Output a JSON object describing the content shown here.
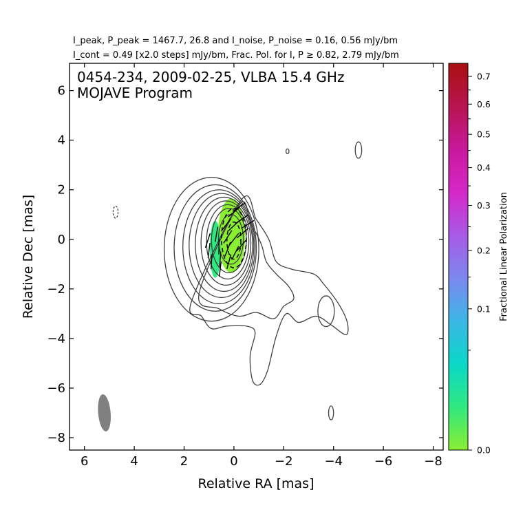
{
  "header": {
    "line1": "I_peak, P_peak = 1467.7, 26.8 and I_noise, P_noise = 0.16, 0.56 mJy/bm",
    "line2": "I_cont = 0.49 [x2.0 steps] mJy/bm, Frac. Pol. for I, P ≥ 0.82, 2.79 mJy/bm"
  },
  "chart_data": {
    "type": "contour",
    "title": "0454-234, 2009-02-25, VLBA 15.4 GHz",
    "subtitle": "MOJAVE Program",
    "xlabel": "Relative RA [mas]",
    "ylabel": "Relative Dec [mas]",
    "xlim": [
      6.6,
      -8.4
    ],
    "ylim": [
      -8.5,
      7.1
    ],
    "x_ticks": [
      6,
      4,
      2,
      0,
      -2,
      -4,
      -6,
      -8
    ],
    "y_ticks": [
      6,
      4,
      2,
      0,
      -2,
      -4,
      -6,
      -8
    ],
    "tick_labels_x": [
      "6",
      "4",
      "2",
      "0",
      "−2",
      "−4",
      "−6",
      "−8"
    ],
    "tick_labels_y": [
      "6",
      "4",
      "2",
      "0",
      "−2",
      "−4",
      "−6",
      "−8"
    ],
    "core_contours": [
      {
        "level": 1,
        "cx": 0.9,
        "cy": -0.4,
        "rx": 1.9,
        "ry": 2.9
      },
      {
        "level": 2,
        "cx": 0.75,
        "cy": -0.35,
        "rx": 1.65,
        "ry": 2.55
      },
      {
        "level": 3,
        "cx": 0.6,
        "cy": -0.3,
        "rx": 1.45,
        "ry": 2.3
      },
      {
        "level": 4,
        "cx": 0.5,
        "cy": -0.25,
        "rx": 1.3,
        "ry": 2.1
      },
      {
        "level": 5,
        "cx": 0.4,
        "cy": -0.2,
        "rx": 1.15,
        "ry": 1.9
      },
      {
        "level": 6,
        "cx": 0.32,
        "cy": -0.15,
        "rx": 1.0,
        "ry": 1.7
      },
      {
        "level": 7,
        "cx": 0.25,
        "cy": -0.1,
        "rx": 0.85,
        "ry": 1.5
      },
      {
        "level": 8,
        "cx": 0.2,
        "cy": -0.05,
        "rx": 0.7,
        "ry": 1.3
      },
      {
        "level": 9,
        "cx": 0.12,
        "cy": 0.0,
        "rx": 0.5,
        "ry": 1.0
      }
    ],
    "jet_outline": [
      [
        -0.3,
        1.6
      ],
      [
        -0.9,
        0.8
      ],
      [
        -1.4,
        0.0
      ],
      [
        -1.7,
        -0.9
      ],
      [
        -2.3,
        -1.2
      ],
      [
        -3.2,
        -1.4
      ],
      [
        -3.6,
        -1.8
      ],
      [
        -4.2,
        -2.6
      ],
      [
        -4.55,
        -3.35
      ],
      [
        -4.5,
        -3.85
      ],
      [
        -3.9,
        -3.45
      ],
      [
        -3.3,
        -3.1
      ],
      [
        -2.6,
        -3.35
      ],
      [
        -2.1,
        -3.0
      ],
      [
        -1.7,
        -3.9
      ],
      [
        -1.35,
        -5.3
      ],
      [
        -1.05,
        -5.85
      ],
      [
        -0.75,
        -5.7
      ],
      [
        -0.65,
        -4.7
      ],
      [
        -0.85,
        -3.75
      ],
      [
        -0.5,
        -3.5
      ],
      [
        0.3,
        -3.5
      ],
      [
        0.9,
        -3.6
      ],
      [
        1.3,
        -3.1
      ],
      [
        1.7,
        -2.5
      ]
    ],
    "second_contour": [
      [
        -0.2,
        1.4
      ],
      [
        -0.7,
        0.6
      ],
      [
        -1.1,
        -0.2
      ],
      [
        -1.3,
        -0.9
      ],
      [
        -1.7,
        -1.4
      ],
      [
        -2.2,
        -1.9
      ],
      [
        -2.4,
        -2.4
      ],
      [
        -2.0,
        -2.7
      ],
      [
        -1.6,
        -3.2
      ],
      [
        -0.9,
        -2.95
      ],
      [
        -0.2,
        -3.1
      ],
      [
        0.6,
        -2.8
      ],
      [
        1.4,
        -2.2
      ]
    ],
    "isolated_contours": [
      {
        "cx": -3.7,
        "cy": -2.9,
        "rx": 0.33,
        "ry": 0.62,
        "dashed": false
      },
      {
        "cx": -5.0,
        "cy": 3.6,
        "rx": 0.13,
        "ry": 0.33,
        "dashed": false
      },
      {
        "cx": -3.9,
        "cy": -7.0,
        "rx": 0.1,
        "ry": 0.28,
        "dashed": false
      },
      {
        "cx": -2.15,
        "cy": 3.55,
        "rx": 0.06,
        "ry": 0.1,
        "dashed": false
      },
      {
        "cx": 4.75,
        "cy": 1.1,
        "rx": 0.1,
        "ry": 0.24,
        "dashed": true
      }
    ],
    "dashed_contours": [
      {
        "cx": 0.0,
        "cy": 0.05,
        "rx": 0.5,
        "ry": 1.2
      },
      {
        "cx": 0.0,
        "cy": -0.05,
        "rx": 0.28,
        "ry": 0.75
      }
    ],
    "polarization_patches": [
      {
        "cx": 0.1,
        "cy": 0.15,
        "rx": 0.55,
        "ry": 1.5,
        "frac": 0.005
      },
      {
        "cx": 0.75,
        "cy": -0.4,
        "rx": 0.22,
        "ry": 1.15,
        "frac": 0.06
      }
    ],
    "evpa_vectors": [
      [
        1.05,
        -0.05,
        1.25
      ],
      [
        1.0,
        -0.45,
        1.45
      ],
      [
        0.9,
        -0.9,
        1.5
      ],
      [
        0.7,
        0.2,
        1.4
      ],
      [
        0.6,
        -0.3,
        1.55
      ],
      [
        0.55,
        -0.8,
        1.5
      ],
      [
        0.55,
        -1.2,
        1.45
      ],
      [
        0.3,
        0.6,
        0.9
      ],
      [
        0.25,
        0.1,
        1.0
      ],
      [
        0.25,
        -0.4,
        1.2
      ],
      [
        0.2,
        -0.9,
        1.3
      ],
      [
        0.0,
        1.1,
        0.7
      ],
      [
        0.0,
        0.55,
        0.75
      ],
      [
        0.0,
        0.0,
        0.9
      ],
      [
        -0.05,
        -0.55,
        1.1
      ],
      [
        -0.2,
        1.3,
        0.6
      ],
      [
        -0.3,
        0.8,
        0.6
      ],
      [
        -0.35,
        0.25,
        0.7
      ],
      [
        -0.3,
        -0.25,
        0.85
      ],
      [
        -0.55,
        0.6,
        0.55
      ]
    ],
    "beam": {
      "cx": 5.2,
      "cy": -7.0,
      "rx": 0.25,
      "ry": 0.75,
      "angle_deg": -5,
      "color": "#808080"
    },
    "colorbar": {
      "label": "Fractional Linear Polarization",
      "range": [
        0.0,
        0.75
      ],
      "ticks": [
        0.0,
        0.1,
        0.2,
        0.3,
        0.4,
        0.5,
        0.6,
        0.7
      ],
      "tick_labels": [
        "0.0",
        "0.1",
        "0.2",
        "0.3",
        "0.4",
        "0.5",
        "0.6",
        "0.7"
      ],
      "stops": [
        "#8aee32",
        "#30e880",
        "#0ad8c8",
        "#3cb6e6",
        "#7c88ee",
        "#a85ae6",
        "#d628c8",
        "#c8189c",
        "#b81450",
        "#a81010"
      ]
    },
    "colors": {
      "contour": "#404040",
      "frame": "#000000"
    }
  }
}
